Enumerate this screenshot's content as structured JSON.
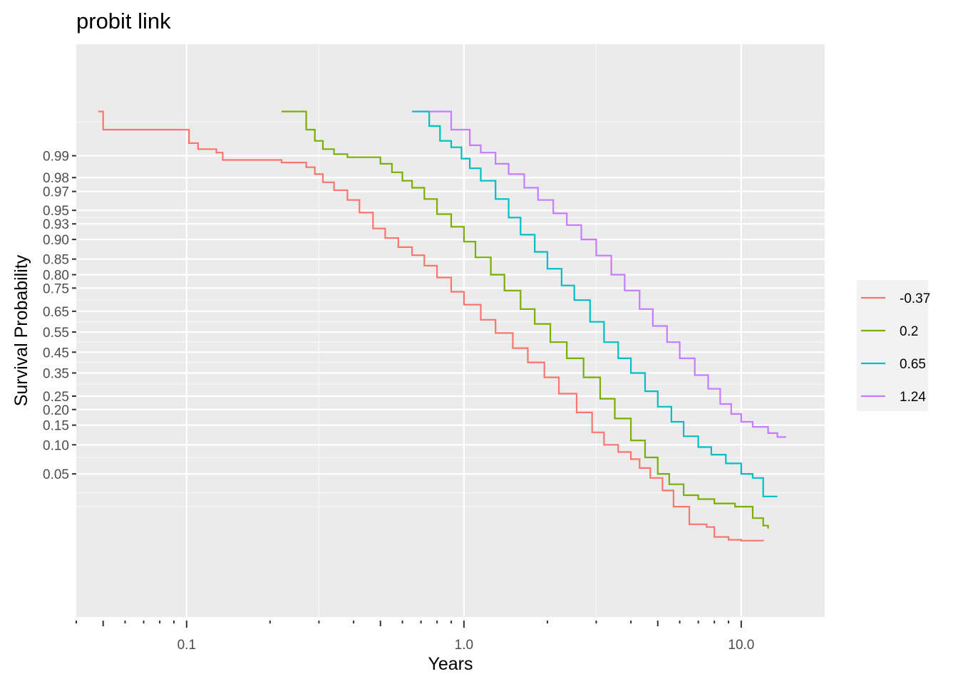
{
  "chart_data": {
    "type": "line",
    "step": true,
    "title": "probit link",
    "xlabel": "Years",
    "ylabel": "Survival Probability",
    "x_scale": "log10",
    "y_scale": "probit",
    "xlim": [
      0.04,
      20
    ],
    "ylim": [
      0.0003,
      0.9999
    ],
    "grid": true,
    "x_major_ticks": [
      0.1,
      1.0,
      10.0
    ],
    "x_tick_labels": [
      "0.1",
      "1.0",
      "10.0"
    ],
    "x_minor_ticks": [
      0.04,
      0.05,
      0.06,
      0.07,
      0.08,
      0.09,
      0.2,
      0.3,
      0.4,
      0.5,
      0.6,
      0.7,
      0.8,
      0.9,
      2,
      3,
      4,
      5,
      6,
      7,
      8,
      9
    ],
    "y_ticks": [
      0.99,
      0.98,
      0.97,
      0.95,
      0.93,
      0.9,
      0.85,
      0.8,
      0.75,
      0.65,
      0.55,
      0.45,
      0.35,
      0.25,
      0.2,
      0.15,
      0.1,
      0.05
    ],
    "y_tick_labels": [
      "0.99",
      "0.98",
      "0.97",
      "0.95",
      "0.93",
      "0.90",
      "0.85",
      "0.80",
      "0.75",
      "0.65",
      "0.55",
      "0.45",
      "0.35",
      "0.25",
      "0.20",
      "0.15",
      "0.10",
      "0.05"
    ],
    "y_minor_grid": [
      0.997,
      0.94,
      0.7,
      0.6,
      0.5,
      0.4,
      0.3,
      0.075,
      0.03,
      0.02
    ],
    "legend_position": "right",
    "series": [
      {
        "name": "-0.37",
        "color": "#F8766D",
        "points": [
          [
            0.048,
            0.998
          ],
          [
            0.05,
            0.996
          ],
          [
            0.102,
            0.9935
          ],
          [
            0.11,
            0.992
          ],
          [
            0.128,
            0.991
          ],
          [
            0.135,
            0.9885
          ],
          [
            0.22,
            0.9875
          ],
          [
            0.27,
            0.9855
          ],
          [
            0.29,
            0.982
          ],
          [
            0.31,
            0.977
          ],
          [
            0.34,
            0.971
          ],
          [
            0.38,
            0.962
          ],
          [
            0.42,
            0.947
          ],
          [
            0.47,
            0.922
          ],
          [
            0.52,
            0.903
          ],
          [
            0.58,
            0.882
          ],
          [
            0.65,
            0.861
          ],
          [
            0.72,
            0.83
          ],
          [
            0.8,
            0.79
          ],
          [
            0.9,
            0.735
          ],
          [
            1.0,
            0.68
          ],
          [
            1.15,
            0.61
          ],
          [
            1.3,
            0.545
          ],
          [
            1.5,
            0.47
          ],
          [
            1.7,
            0.4
          ],
          [
            1.95,
            0.33
          ],
          [
            2.2,
            0.26
          ],
          [
            2.55,
            0.19
          ],
          [
            2.9,
            0.13
          ],
          [
            3.2,
            0.1
          ],
          [
            3.6,
            0.085
          ],
          [
            4.0,
            0.072
          ],
          [
            4.3,
            0.058
          ],
          [
            4.7,
            0.045
          ],
          [
            5.2,
            0.032
          ],
          [
            5.7,
            0.02
          ],
          [
            6.5,
            0.0115
          ],
          [
            7.5,
            0.0105
          ],
          [
            8.0,
            0.0075
          ],
          [
            9.0,
            0.0068
          ],
          [
            10.0,
            0.0066
          ],
          [
            12.0,
            0.0065
          ]
        ]
      },
      {
        "name": "0.2",
        "color": "#7CAE00",
        "points": [
          [
            0.22,
            0.998
          ],
          [
            0.27,
            0.996
          ],
          [
            0.29,
            0.994
          ],
          [
            0.31,
            0.992
          ],
          [
            0.34,
            0.9905
          ],
          [
            0.38,
            0.9895
          ],
          [
            0.5,
            0.987
          ],
          [
            0.55,
            0.983
          ],
          [
            0.6,
            0.978
          ],
          [
            0.65,
            0.973
          ],
          [
            0.72,
            0.963
          ],
          [
            0.8,
            0.945
          ],
          [
            0.9,
            0.925
          ],
          [
            1.0,
            0.895
          ],
          [
            1.1,
            0.855
          ],
          [
            1.25,
            0.8
          ],
          [
            1.4,
            0.74
          ],
          [
            1.6,
            0.66
          ],
          [
            1.8,
            0.59
          ],
          [
            2.05,
            0.5
          ],
          [
            2.35,
            0.42
          ],
          [
            2.7,
            0.33
          ],
          [
            3.1,
            0.24
          ],
          [
            3.5,
            0.17
          ],
          [
            4.0,
            0.11
          ],
          [
            4.5,
            0.075
          ],
          [
            5.0,
            0.05
          ],
          [
            5.5,
            0.038
          ],
          [
            6.2,
            0.028
          ],
          [
            7.0,
            0.025
          ],
          [
            8.0,
            0.022
          ],
          [
            9.5,
            0.02
          ],
          [
            11.0,
            0.014
          ],
          [
            12.0,
            0.011
          ],
          [
            12.5,
            0.01
          ]
        ]
      },
      {
        "name": "0.65",
        "color": "#00BFC4",
        "points": [
          [
            0.65,
            0.998
          ],
          [
            0.75,
            0.9965
          ],
          [
            0.82,
            0.994
          ],
          [
            0.9,
            0.9925
          ],
          [
            0.98,
            0.989
          ],
          [
            1.05,
            0.985
          ],
          [
            1.15,
            0.978
          ],
          [
            1.3,
            0.963
          ],
          [
            1.45,
            0.94
          ],
          [
            1.6,
            0.91
          ],
          [
            1.8,
            0.87
          ],
          [
            2.0,
            0.82
          ],
          [
            2.25,
            0.76
          ],
          [
            2.5,
            0.7
          ],
          [
            2.85,
            0.6
          ],
          [
            3.2,
            0.5
          ],
          [
            3.6,
            0.42
          ],
          [
            4.0,
            0.35
          ],
          [
            4.5,
            0.27
          ],
          [
            5.0,
            0.21
          ],
          [
            5.6,
            0.16
          ],
          [
            6.2,
            0.12
          ],
          [
            7.0,
            0.095
          ],
          [
            7.8,
            0.08
          ],
          [
            8.8,
            0.065
          ],
          [
            10.0,
            0.05
          ],
          [
            11.0,
            0.045
          ],
          [
            12.0,
            0.027
          ],
          [
            13.5,
            0.027
          ]
        ]
      },
      {
        "name": "1.24",
        "color": "#C77CFF",
        "points": [
          [
            0.75,
            0.998
          ],
          [
            0.9,
            0.996
          ],
          [
            1.05,
            0.993
          ],
          [
            1.15,
            0.991
          ],
          [
            1.3,
            0.987
          ],
          [
            1.45,
            0.982
          ],
          [
            1.65,
            0.973
          ],
          [
            1.85,
            0.962
          ],
          [
            2.1,
            0.946
          ],
          [
            2.35,
            0.928
          ],
          [
            2.65,
            0.9
          ],
          [
            3.0,
            0.86
          ],
          [
            3.4,
            0.8
          ],
          [
            3.8,
            0.74
          ],
          [
            4.3,
            0.66
          ],
          [
            4.8,
            0.58
          ],
          [
            5.4,
            0.5
          ],
          [
            6.0,
            0.42
          ],
          [
            6.8,
            0.34
          ],
          [
            7.6,
            0.28
          ],
          [
            8.4,
            0.22
          ],
          [
            9.2,
            0.185
          ],
          [
            10.0,
            0.16
          ],
          [
            11.0,
            0.145
          ],
          [
            12.5,
            0.128
          ],
          [
            13.5,
            0.118
          ],
          [
            14.5,
            0.118
          ]
        ]
      }
    ]
  }
}
